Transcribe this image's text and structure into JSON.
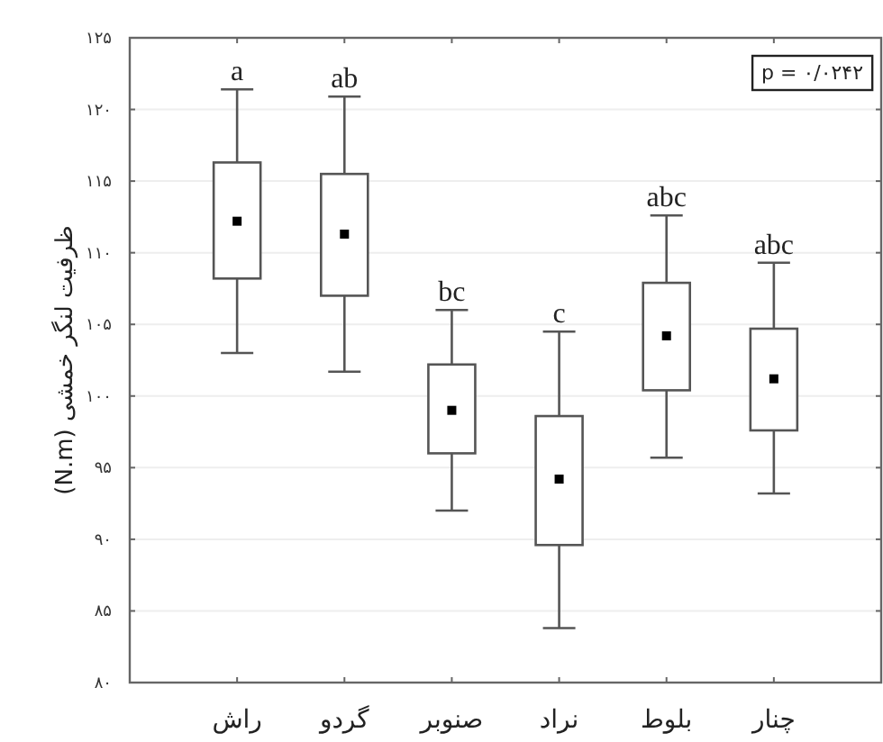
{
  "chart_data": {
    "type": "box",
    "ylabel": "ظرفیت لنگر خمشی (N.m)",
    "categories": [
      "راش",
      "گردو",
      "صنوبر",
      "نراد",
      "بلوط",
      "چنار"
    ],
    "boxes": [
      {
        "low": 103.0,
        "q1": 108.2,
        "median": 112.2,
        "q3": 116.3,
        "high": 121.4
      },
      {
        "low": 101.7,
        "q1": 107.0,
        "median": 111.3,
        "q3": 115.5,
        "high": 120.9
      },
      {
        "low": 92.0,
        "q1": 96.0,
        "median": 99.0,
        "q3": 102.2,
        "high": 106.0
      },
      {
        "low": 83.8,
        "q1": 89.6,
        "median": 94.2,
        "q3": 98.6,
        "high": 104.5
      },
      {
        "low": 95.7,
        "q1": 100.4,
        "median": 104.2,
        "q3": 107.9,
        "high": 112.6
      },
      {
        "low": 93.2,
        "q1": 97.6,
        "median": 101.2,
        "q3": 104.7,
        "high": 109.3
      }
    ],
    "color": "#555555",
    "ylim": [
      80,
      125
    ],
    "yticks": [
      {
        "value": 80,
        "label": "۸۰"
      },
      {
        "value": 85,
        "label": "۸۵"
      },
      {
        "value": 90,
        "label": "۹۰"
      },
      {
        "value": 95,
        "label": "۹۵"
      },
      {
        "value": 100,
        "label": "۱۰۰"
      },
      {
        "value": 105,
        "label": "۱۰۵"
      },
      {
        "value": 110,
        "label": "۱۱۰"
      },
      {
        "value": 115,
        "label": "۱۱۵"
      },
      {
        "value": 120,
        "label": "۱۲۰"
      },
      {
        "value": 125,
        "label": "۱۲۵"
      }
    ],
    "grid": "y",
    "annotations": [
      "a",
      "ab",
      "bc",
      "c",
      "abc",
      "abc",
      "p = ۰/۰۲۴۲"
    ]
  }
}
